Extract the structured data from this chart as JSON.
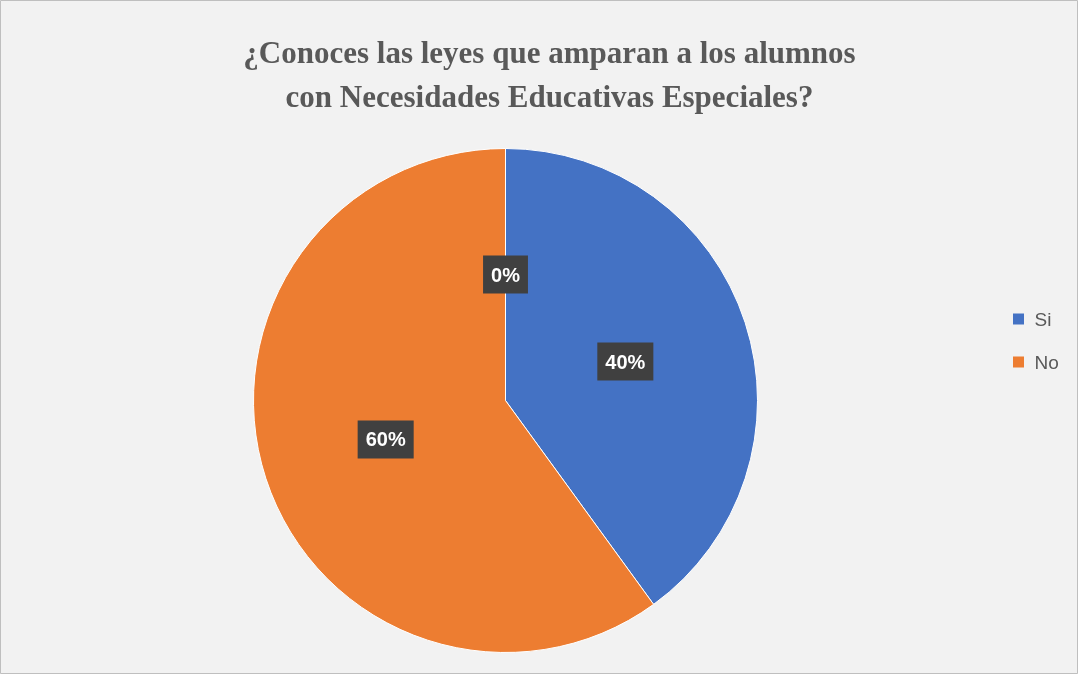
{
  "chart_data": {
    "type": "pie",
    "title": "¿Conoces las leyes que amparan a los alumnos con Necesidades Educativas Especiales?",
    "categories": [
      "Si",
      "No",
      null
    ],
    "values": [
      40,
      60,
      0
    ],
    "colors": [
      "#4472c4",
      "#ed7d31",
      "#a5a5a5"
    ],
    "value_labels": [
      "40%",
      "60%",
      "0%"
    ],
    "legend": "right"
  }
}
